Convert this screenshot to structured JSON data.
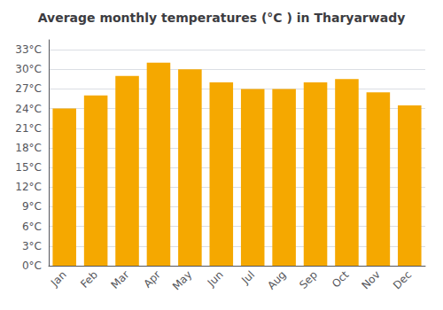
{
  "chart_data": {
    "type": "bar",
    "title": "Average monthly temperatures (°C ) in Tharyarwady",
    "categories": [
      "Jan",
      "Feb",
      "Mar",
      "Apr",
      "May",
      "Jun",
      "Jul",
      "Aug",
      "Sep",
      "Oct",
      "Nov",
      "Dec"
    ],
    "values": [
      24.0,
      26.0,
      29.0,
      31.0,
      30.0,
      28.0,
      27.0,
      27.0,
      28.0,
      28.5,
      26.5,
      24.5
    ],
    "color": "#F5A800",
    "ylim": [
      0,
      34.5
    ],
    "yticks": [
      {
        "value": 0,
        "label": "0°C"
      },
      {
        "value": 3,
        "label": "3°C"
      },
      {
        "value": 6,
        "label": "6°C"
      },
      {
        "value": 9,
        "label": "9°C"
      },
      {
        "value": 12,
        "label": "12°C"
      },
      {
        "value": 15,
        "label": "15°C"
      },
      {
        "value": 18,
        "label": "18°C"
      },
      {
        "value": 21,
        "label": "21°C"
      },
      {
        "value": 24,
        "label": "24°C"
      },
      {
        "value": 27,
        "label": "27°C"
      },
      {
        "value": 30,
        "label": "30°C"
      },
      {
        "value": 33,
        "label": "33°C"
      }
    ],
    "grid": true
  }
}
